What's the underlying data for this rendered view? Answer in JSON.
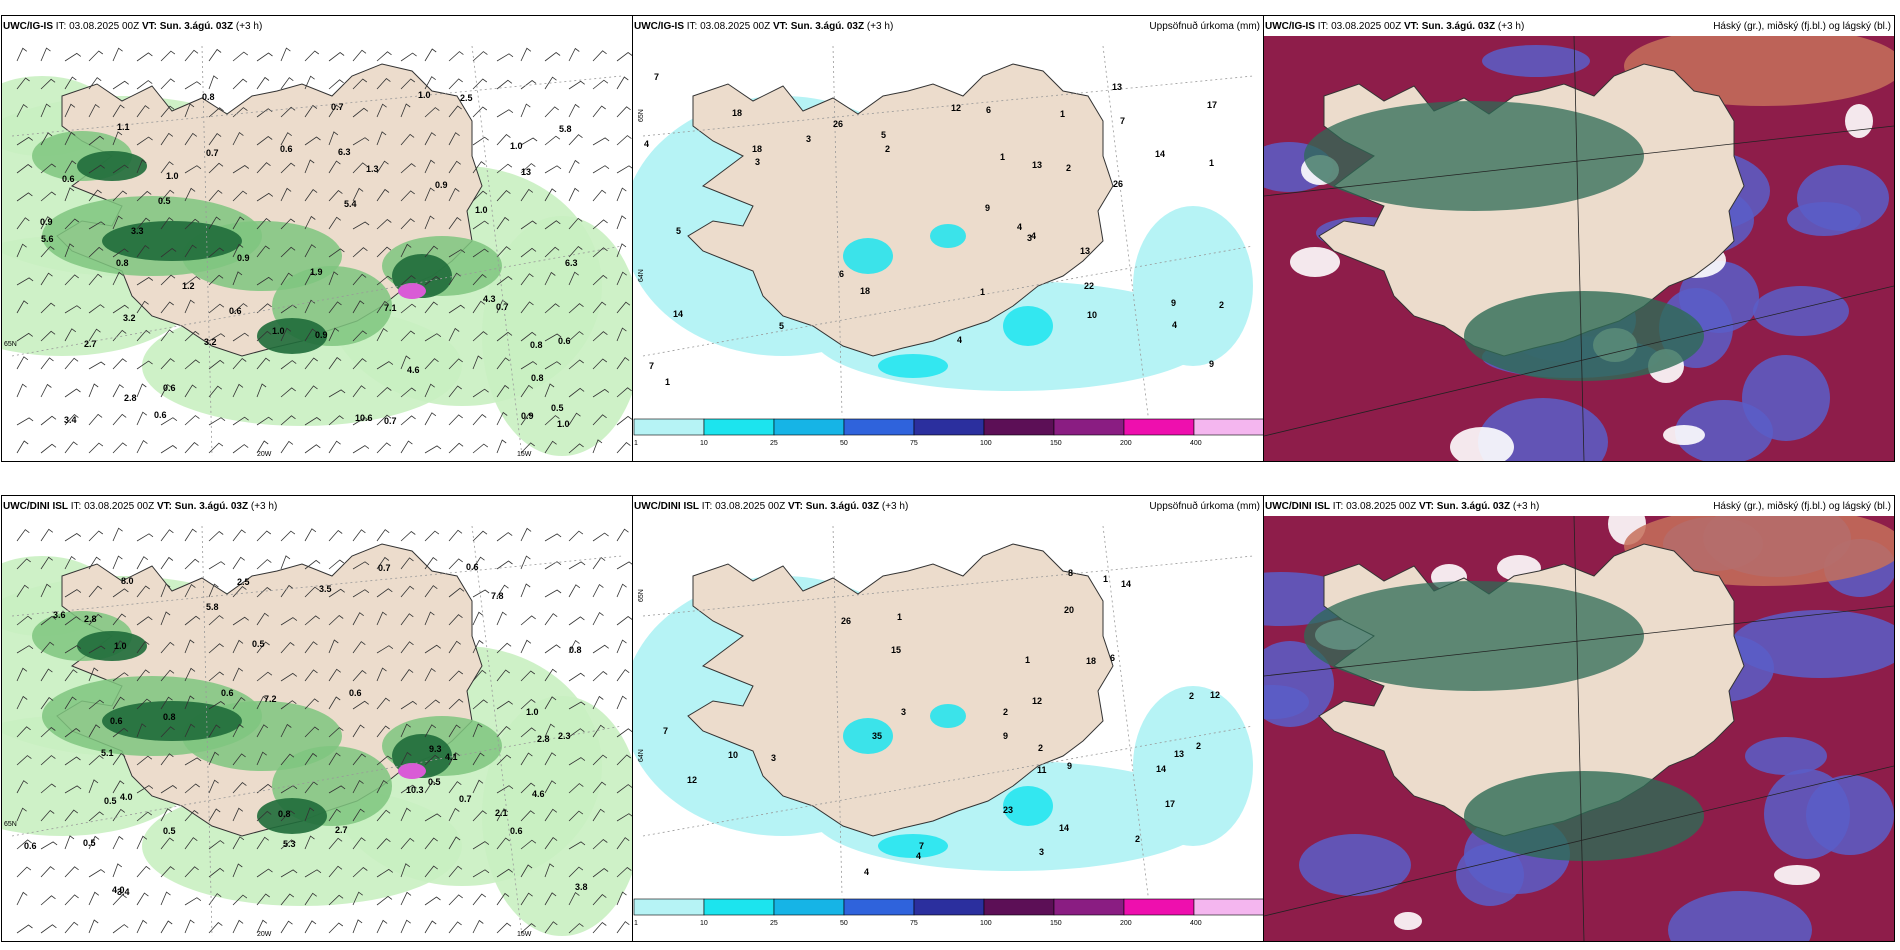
{
  "colors": {
    "land": "#ecdccc",
    "ocean_white": "#ffffff",
    "green_light": "#c9efc1",
    "green_mid": "#7fc57f",
    "green_dark": "#1f6b3a",
    "precip_cyan": "#b6f3f5",
    "cloud_high": "#2e6b55",
    "cloud_mid": "#8e1d4a",
    "cloud_low": "#5a5ec8"
  },
  "colorbar": {
    "ticks": [
      "1",
      "10",
      "25",
      "50",
      "75",
      "100",
      "150",
      "200",
      "400"
    ],
    "colors": [
      "#b6f3f5",
      "#1ce4ee",
      "#16b4e6",
      "#2f63dc",
      "#2b2f9e",
      "#5c0f56",
      "#8a1d82",
      "#ee0fae",
      "#f4b6ef"
    ]
  },
  "rows": [
    {
      "model": "UWC/IG-IS",
      "panels": [
        {
          "kind": "precip_rate_wind",
          "model": "UWC/IG-IS",
          "it": "IT: 03.08.2025 00Z",
          "vt": "VT: Sun. 3.ágú. 03Z",
          "lead": "(+3 h)",
          "right_title": "",
          "axis_labels": [
            "20W",
            "15W",
            "65N"
          ],
          "values": [
            "0.9",
            "0.6",
            "0.6",
            "1.0",
            "0.8",
            "1.0",
            "0.5",
            "0.7",
            "1.0",
            "3.2",
            "2.7",
            "1.9",
            "1.2",
            "0.9",
            "0.8",
            "0.6",
            "0.5",
            "6.3",
            "2.8",
            "3.2",
            "5.4",
            "2.5",
            "3.4",
            "4.6",
            "10.6",
            "5.8",
            "0.6",
            "1.0",
            "0.8",
            "0.7",
            "3.3",
            "5.6",
            "6.3",
            "7.1",
            "13",
            "4.3",
            "0.7",
            "0.6",
            "1.0",
            "0.9",
            "0.8",
            "1.1",
            "1.3",
            "0.9",
            "0.7",
            "0.6",
            "0.9",
            "1.0"
          ]
        },
        {
          "kind": "accum_precip",
          "model": "UWC/IG-IS",
          "it": "IT: 03.08.2025 00Z",
          "vt": "VT: Sun. 3.ágú. 03Z",
          "lead": "(+3 h)",
          "right_title": "Uppsöfnuð úrkoma (mm)",
          "axis_labels": [
            "65N",
            "64N"
          ],
          "values": [
            "4",
            "5",
            "5",
            "5",
            "3",
            "14",
            "13",
            "9",
            "6",
            "12",
            "13",
            "7",
            "9",
            "7",
            "4",
            "3",
            "1",
            "7",
            "9",
            "18",
            "14",
            "26",
            "22",
            "18",
            "13",
            "10",
            "17",
            "6",
            "4",
            "4",
            "3",
            "2",
            "1",
            "1",
            "2",
            "1",
            "1",
            "26",
            "18",
            "4",
            "2"
          ]
        },
        {
          "kind": "cloud_cover",
          "model": "UWC/IG-IS",
          "it": "IT: 03.08.2025 00Z",
          "vt": "VT: Sun. 3.ágú. 03Z",
          "lead": "(+3 h)",
          "right_title": "Háský (gr.), miðský (fj.bl.) og lágský (bl.)",
          "axis_labels": [],
          "values": []
        }
      ]
    },
    {
      "model": "UWC/DINI ISL",
      "panels": [
        {
          "kind": "precip_rate_wind",
          "model": "UWC/DINI ISL",
          "it": "IT: 03.08.2025 00Z",
          "vt": "VT: Sun. 3.ágú. 03Z",
          "lead": "(+3 h)",
          "right_title": "",
          "axis_labels": [
            "20W",
            "15W",
            "65N"
          ],
          "values": [
            "2.3",
            "0.5",
            "0.6",
            "0.5",
            "0.8",
            "1.0",
            "5.1",
            "4.6",
            "2.8",
            "2.5",
            "2.7",
            "4.1",
            "4.0",
            "3.5",
            "3.4",
            "2.1",
            "4.0",
            "10.3",
            "9.3",
            "0.7",
            "0.7",
            "0.6",
            "0.5",
            "0.6",
            "5.3",
            "5.8",
            "8.0",
            "3.8",
            "2.8",
            "7.2",
            "3.6",
            "7.8",
            "0.8",
            "0.6",
            "0.5",
            "0.6",
            "1.0",
            "0.8",
            "0.5",
            "0.6"
          ]
        },
        {
          "kind": "accum_precip",
          "model": "UWC/DINI ISL",
          "it": "IT: 03.08.2025 00Z",
          "vt": "VT: Sun. 3.ágú. 03Z",
          "lead": "(+3 h)",
          "right_title": "Uppsöfnuð úrkoma (mm)",
          "axis_labels": [
            "65N",
            "64N"
          ],
          "values": [
            "4",
            "3",
            "4",
            "1",
            "12",
            "14",
            "9",
            "7",
            "10",
            "11",
            "12",
            "3",
            "9",
            "13",
            "18",
            "14",
            "23",
            "20",
            "6",
            "15",
            "17",
            "14",
            "12",
            "2",
            "2",
            "2",
            "3",
            "2",
            "1",
            "7",
            "8",
            "26",
            "35",
            "2",
            "1"
          ]
        },
        {
          "kind": "cloud_cover",
          "model": "UWC/DINI ISL",
          "it": "IT: 03.08.2025 00Z",
          "vt": "VT: Sun. 3.ágú. 03Z",
          "lead": "(+3 h)",
          "right_title": "Háský (gr.), miðský (fj.bl.) og lágský (bl.)",
          "axis_labels": [],
          "values": []
        }
      ]
    }
  ]
}
